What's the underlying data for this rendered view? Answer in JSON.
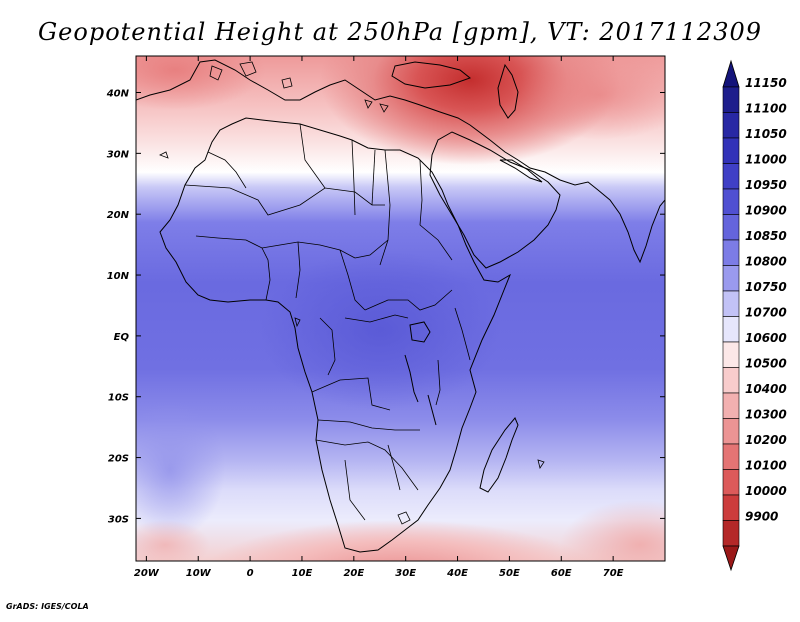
{
  "title": "Geopotential Height at 250hPa [gpm], VT: 2017112309",
  "credit": "GrADS: IGES/COLA",
  "map": {
    "lon_range": [
      -22,
      80
    ],
    "lat_range": [
      -37,
      46
    ],
    "lon_ticks": [
      {
        "value": -20,
        "label": "20W"
      },
      {
        "value": -10,
        "label": "10W"
      },
      {
        "value": 0,
        "label": "0"
      },
      {
        "value": 10,
        "label": "10E"
      },
      {
        "value": 20,
        "label": "20E"
      },
      {
        "value": 30,
        "label": "30E"
      },
      {
        "value": 40,
        "label": "40E"
      },
      {
        "value": 50,
        "label": "50E"
      },
      {
        "value": 60,
        "label": "60E"
      },
      {
        "value": 70,
        "label": "70E"
      }
    ],
    "lat_ticks": [
      {
        "value": 40,
        "label": "40N"
      },
      {
        "value": 30,
        "label": "30N"
      },
      {
        "value": 20,
        "label": "20N"
      },
      {
        "value": 10,
        "label": "10N"
      },
      {
        "value": 0,
        "label": "EQ"
      },
      {
        "value": -10,
        "label": "10S"
      },
      {
        "value": -20,
        "label": "20S"
      },
      {
        "value": -30,
        "label": "30S"
      }
    ]
  },
  "colorbar": {
    "levels": [
      {
        "label": "11150",
        "color": "#1e1e8c"
      },
      {
        "label": "11100",
        "color": "#2828a4"
      },
      {
        "label": "11050",
        "color": "#3232b8"
      },
      {
        "label": "11000",
        "color": "#3f3fc6"
      },
      {
        "label": "10950",
        "color": "#5050d2"
      },
      {
        "label": "10900",
        "color": "#6464dc"
      },
      {
        "label": "10850",
        "color": "#7c7ce6"
      },
      {
        "label": "10800",
        "color": "#9a9aee"
      },
      {
        "label": "10750",
        "color": "#c2c2f6"
      },
      {
        "label": "10700",
        "color": "#e6e6fc"
      },
      {
        "label": "10600",
        "color": "#fce8e8"
      },
      {
        "label": "10500",
        "color": "#f8cccc"
      },
      {
        "label": "10400",
        "color": "#f2b0b0"
      },
      {
        "label": "10300",
        "color": "#ec9494"
      },
      {
        "label": "10200",
        "color": "#e47474"
      },
      {
        "label": "10100",
        "color": "#dc5a5a"
      },
      {
        "label": "10000",
        "color": "#cc3c3c"
      },
      {
        "label": "9900",
        "color": "#b42828"
      }
    ],
    "top_arrow_color": "#14147a",
    "bottom_arrow_color": "#9a1818"
  }
}
